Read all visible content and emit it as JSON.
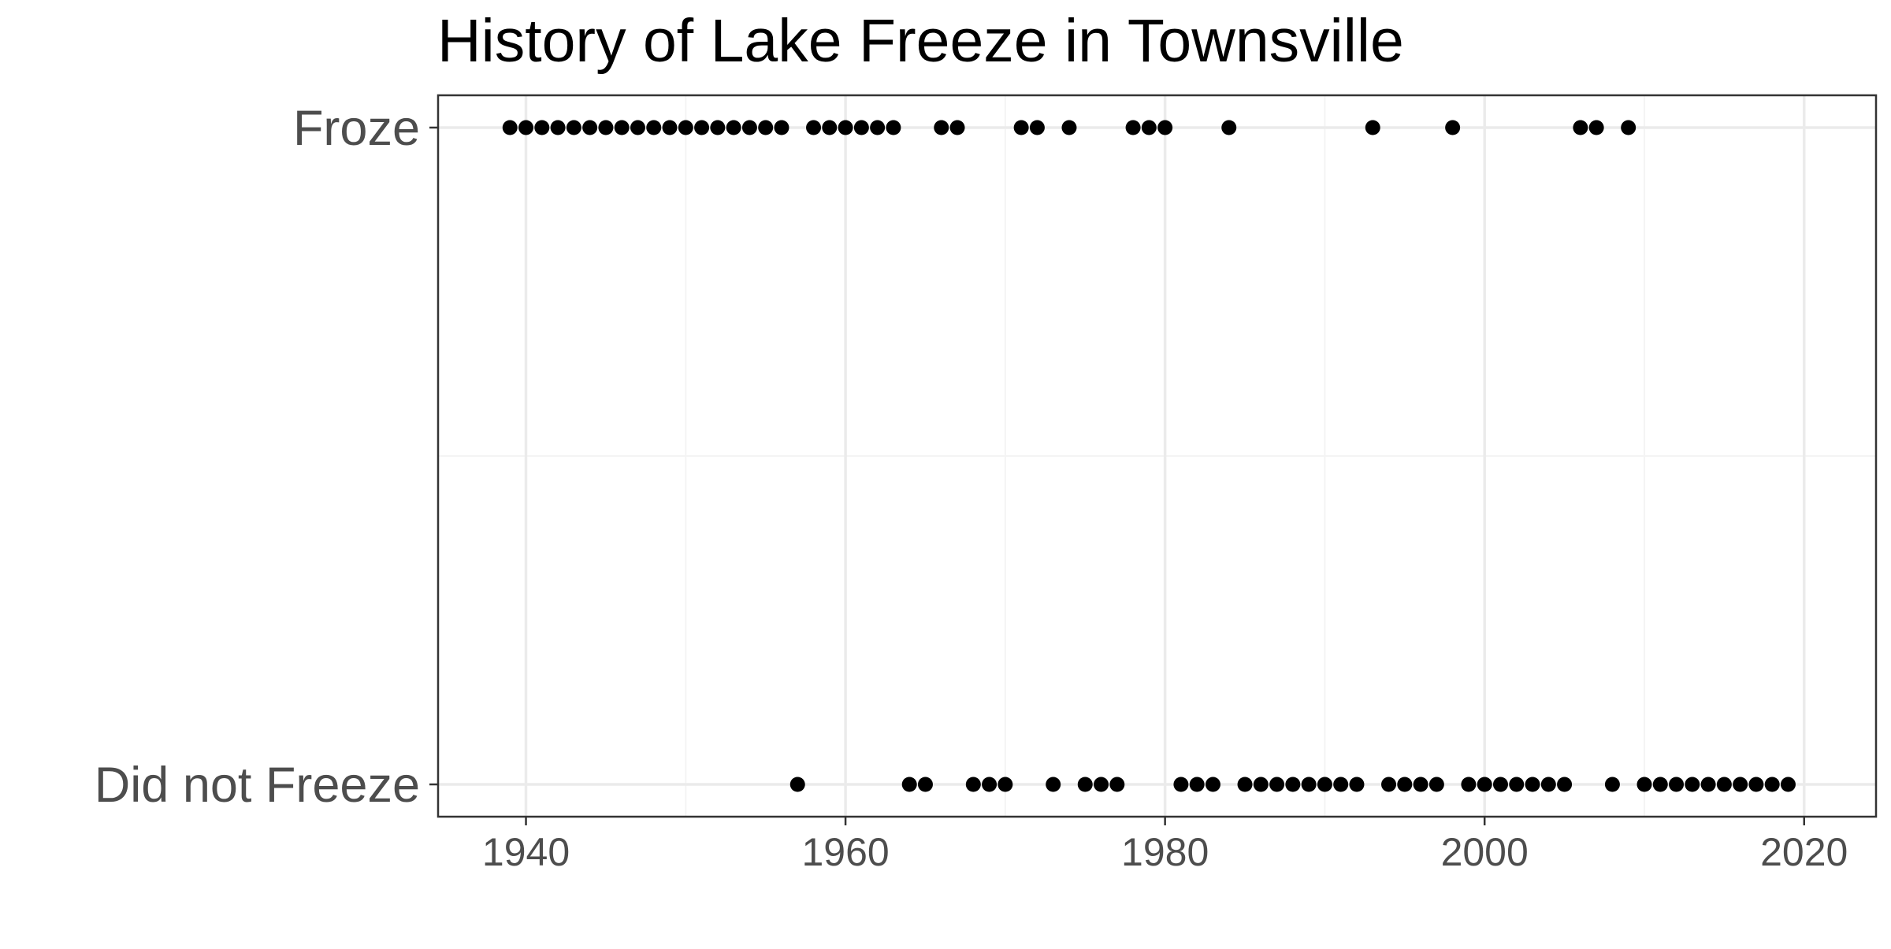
{
  "chart_data": {
    "type": "scatter",
    "title": "History of Lake Freeze in Townsville",
    "xlabel": "",
    "ylabel": "",
    "xlim": [
      1934.5,
      2024.5
    ],
    "x_ticks": [
      "1940",
      "1960",
      "1980",
      "2000",
      "2020"
    ],
    "y_categories": [
      "Froze",
      "Did not Freeze"
    ],
    "grid": true,
    "legend": "none",
    "colors": {
      "point": "#000000",
      "panel_border": "#333333",
      "grid_major": "#ebebeb",
      "grid_minor": "#f4f4f4",
      "tick_label": "#4d4d4d"
    },
    "series": [
      {
        "category": "Froze",
        "x": [
          1939,
          1940,
          1941,
          1942,
          1943,
          1944,
          1945,
          1946,
          1947,
          1948,
          1949,
          1950,
          1951,
          1952,
          1953,
          1954,
          1955,
          1956,
          1958,
          1959,
          1960,
          1961,
          1962,
          1963,
          1966,
          1967,
          1971,
          1972,
          1974,
          1978,
          1979,
          1980,
          1984,
          1993,
          1998,
          2006,
          2007,
          2009
        ]
      },
      {
        "category": "Did not Freeze",
        "x": [
          1957,
          1964,
          1965,
          1968,
          1969,
          1970,
          1973,
          1975,
          1976,
          1977,
          1981,
          1982,
          1983,
          1985,
          1986,
          1987,
          1988,
          1989,
          1990,
          1991,
          1992,
          1994,
          1995,
          1996,
          1997,
          1999,
          2000,
          2001,
          2002,
          2003,
          2004,
          2005,
          2008,
          2010,
          2011,
          2012,
          2013,
          2014,
          2015,
          2016,
          2017,
          2018,
          2019
        ]
      }
    ]
  }
}
